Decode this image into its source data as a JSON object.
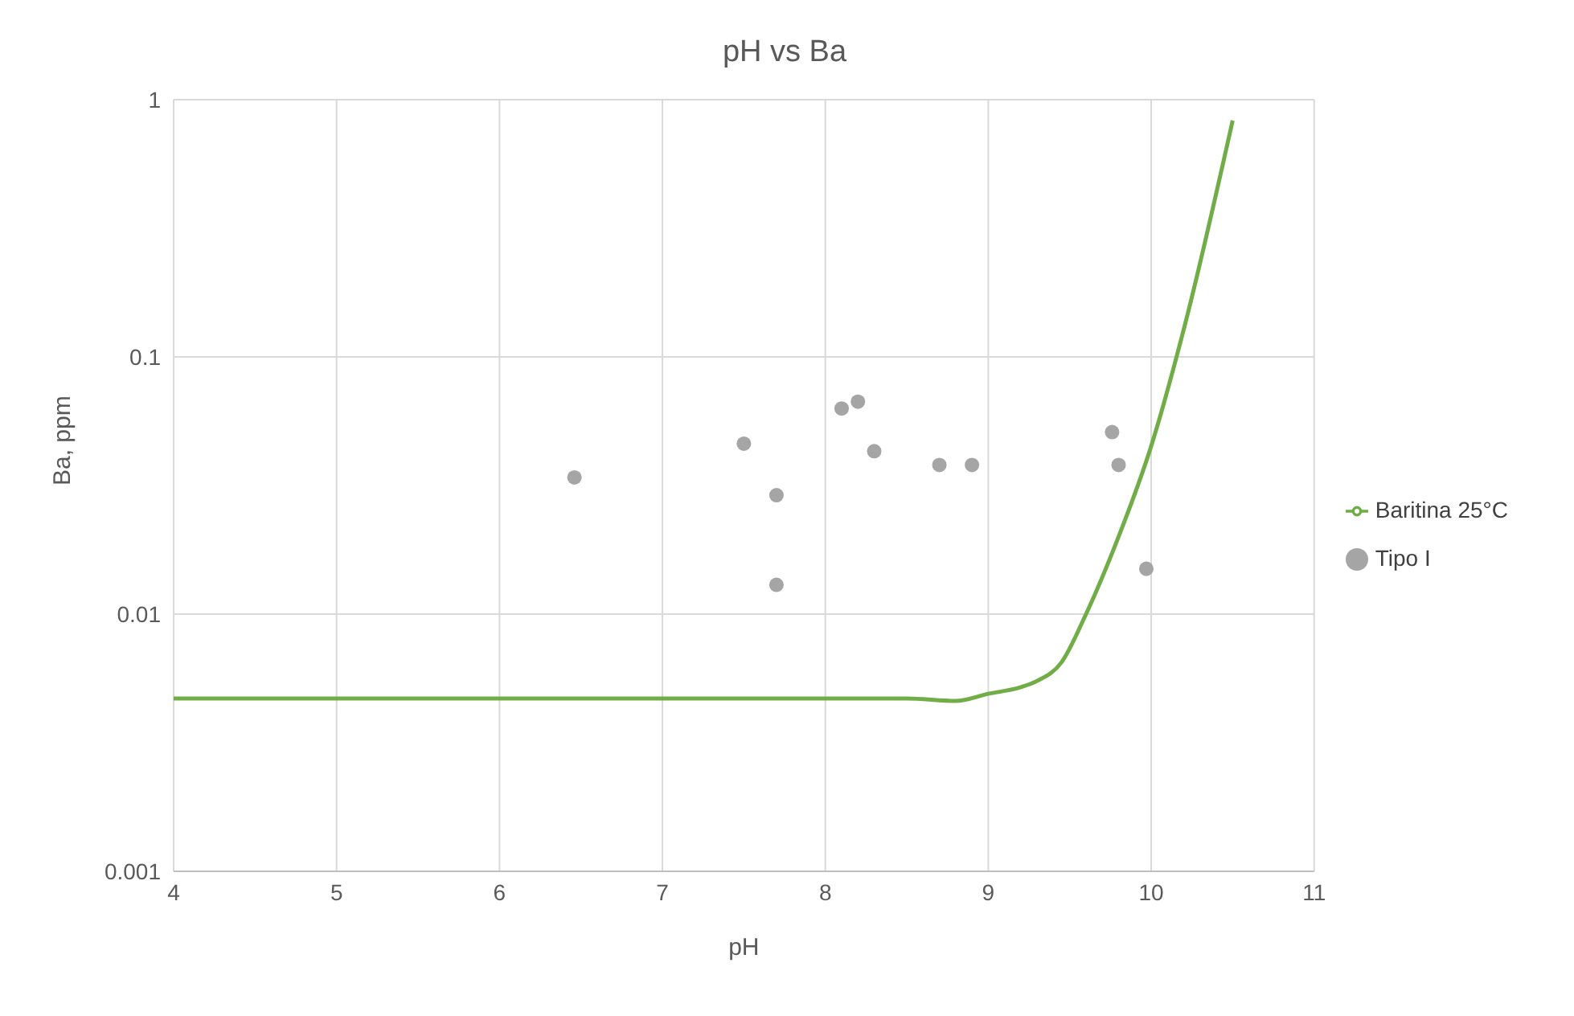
{
  "chart_data": {
    "type": "scatter",
    "title": "pH vs Ba",
    "xlabel": "pH",
    "ylabel": "Ba, ppm",
    "log": "y",
    "grid": true,
    "legend": "right",
    "xlim": [
      4,
      11
    ],
    "xticks": [
      4,
      5,
      6,
      7,
      8,
      9,
      10,
      11
    ],
    "ylim": [
      0.001,
      1
    ],
    "yticks": [
      0.001,
      0.01,
      0.1,
      1
    ],
    "series": [
      {
        "name": "Baritina 25°C",
        "type": "line",
        "marker": "none",
        "line_style": "solid",
        "color": "#70ad47",
        "x": [
          4,
          5,
          6,
          7,
          8,
          8.5,
          8.8,
          9,
          9.2,
          9.3,
          9.45,
          9.6,
          9.8,
          10,
          10.2,
          10.5
        ],
        "values": [
          0.0047,
          0.0047,
          0.0047,
          0.0047,
          0.0047,
          0.0047,
          0.0046,
          0.0049,
          0.0052,
          0.0055,
          0.0065,
          0.01,
          0.02,
          0.045,
          0.128,
          0.83
        ]
      },
      {
        "name": "Tipo I",
        "marker": "circle",
        "color": "#a5a5a5",
        "x": [
          6.46,
          7.5,
          7.7,
          7.7,
          8.1,
          8.2,
          8.3,
          8.7,
          8.9,
          9.76,
          9.8,
          9.97
        ],
        "values": [
          0.034,
          0.046,
          0.029,
          0.013,
          0.063,
          0.067,
          0.043,
          0.038,
          0.038,
          0.051,
          0.038,
          0.015
        ]
      }
    ]
  }
}
